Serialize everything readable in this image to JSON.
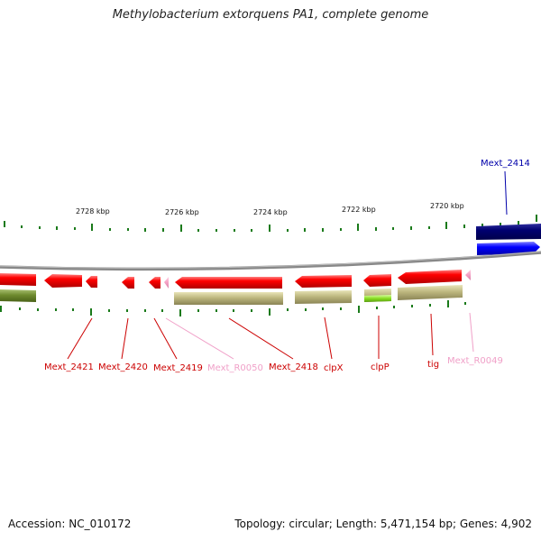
{
  "title": "Methylobacterium extorquens PA1, complete genome",
  "footer": {
    "accession": "Accession: NC_010172",
    "summary": "Topology: circular; Length: 5,471,154 bp; Genes: 4,902"
  },
  "scale_labels": [
    "2728 kbp",
    "2726 kbp",
    "2724 kbp",
    "2722 kbp",
    "2720 kbp"
  ],
  "genes": [
    {
      "label": "Mext_2421",
      "color": "#cc0000"
    },
    {
      "label": "Mext_2420",
      "color": "#cc0000"
    },
    {
      "label": "Mext_2419",
      "color": "#cc0000"
    },
    {
      "label": "Mext_R0050",
      "color": "#f0a0c8"
    },
    {
      "label": "Mext_2418",
      "color": "#cc0000"
    },
    {
      "label": "clpX",
      "color": "#cc0000"
    },
    {
      "label": "clpP",
      "color": "#cc0000"
    },
    {
      "label": "tig",
      "color": "#cc0000"
    },
    {
      "label": "Mext_R0049",
      "color": "#f0a0c8"
    },
    {
      "label": "Mext_2414",
      "color": "#0000aa"
    }
  ],
  "colors": {
    "forward_cds": "#0000ee",
    "forward_dark": "#00007a",
    "reverse_cds": "#ee0000",
    "rna": "#f4a8c8",
    "olive": "#6b8a2a",
    "khaki": "#b5b07a",
    "lime": "#88dd22",
    "backbone": "#888888",
    "ticks": "#1a7a1a"
  }
}
